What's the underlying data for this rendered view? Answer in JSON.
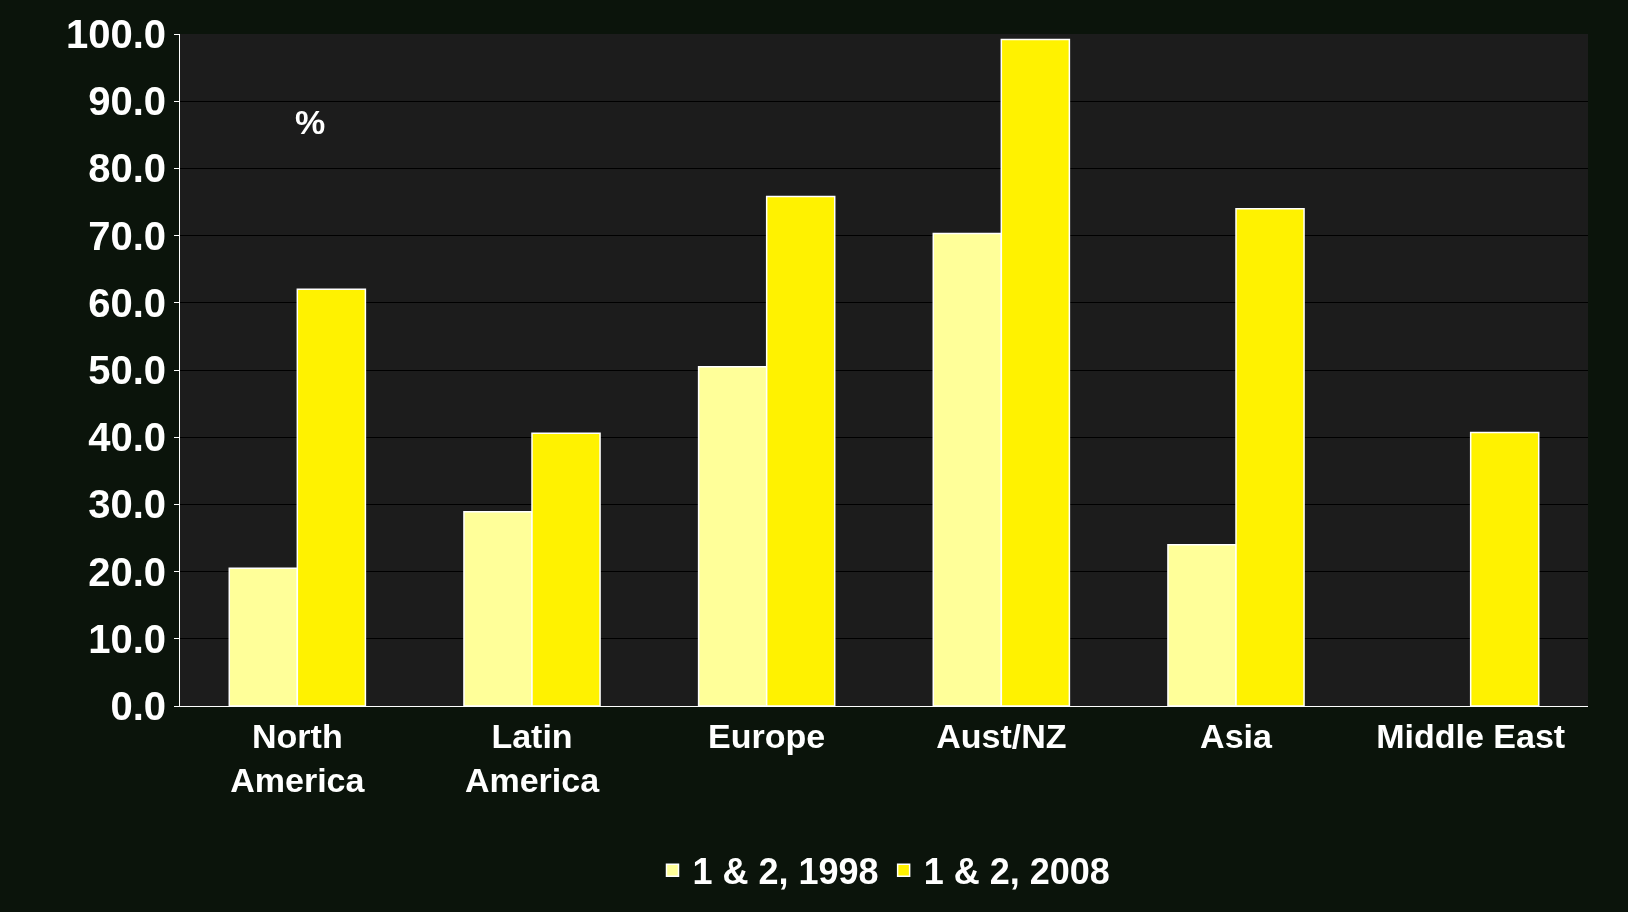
{
  "chart_data": {
    "type": "bar",
    "categories": [
      "North\nAmerica",
      "Latin\nAmerica",
      "Europe",
      "Aust/NZ",
      "Asia",
      "Middle East"
    ],
    "series": [
      {
        "name": "1 & 2, 1998",
        "color": "#ffff99",
        "values": [
          20.5,
          28.9,
          50.5,
          70.3,
          24.0,
          null
        ]
      },
      {
        "name": "1 & 2, 2008",
        "color": "#fff200",
        "values": [
          62.0,
          40.6,
          75.8,
          99.2,
          74.0,
          40.7
        ]
      }
    ],
    "annotations": [
      {
        "text": "%"
      }
    ],
    "ylim": [
      0,
      100
    ],
    "yticks": [
      {
        "value": 0,
        "label": "0.0"
      },
      {
        "value": 10,
        "label": "10.0"
      },
      {
        "value": 20,
        "label": "20.0"
      },
      {
        "value": 30,
        "label": "30.0"
      },
      {
        "value": 40,
        "label": "40.0"
      },
      {
        "value": 50,
        "label": "50.0"
      },
      {
        "value": 60,
        "label": "60.0"
      },
      {
        "value": 70,
        "label": "70.0"
      },
      {
        "value": 80,
        "label": "80.0"
      },
      {
        "value": 90,
        "label": "90.0"
      },
      {
        "value": 100,
        "label": "100.0"
      }
    ],
    "grid": "y",
    "legend": "bottom"
  }
}
